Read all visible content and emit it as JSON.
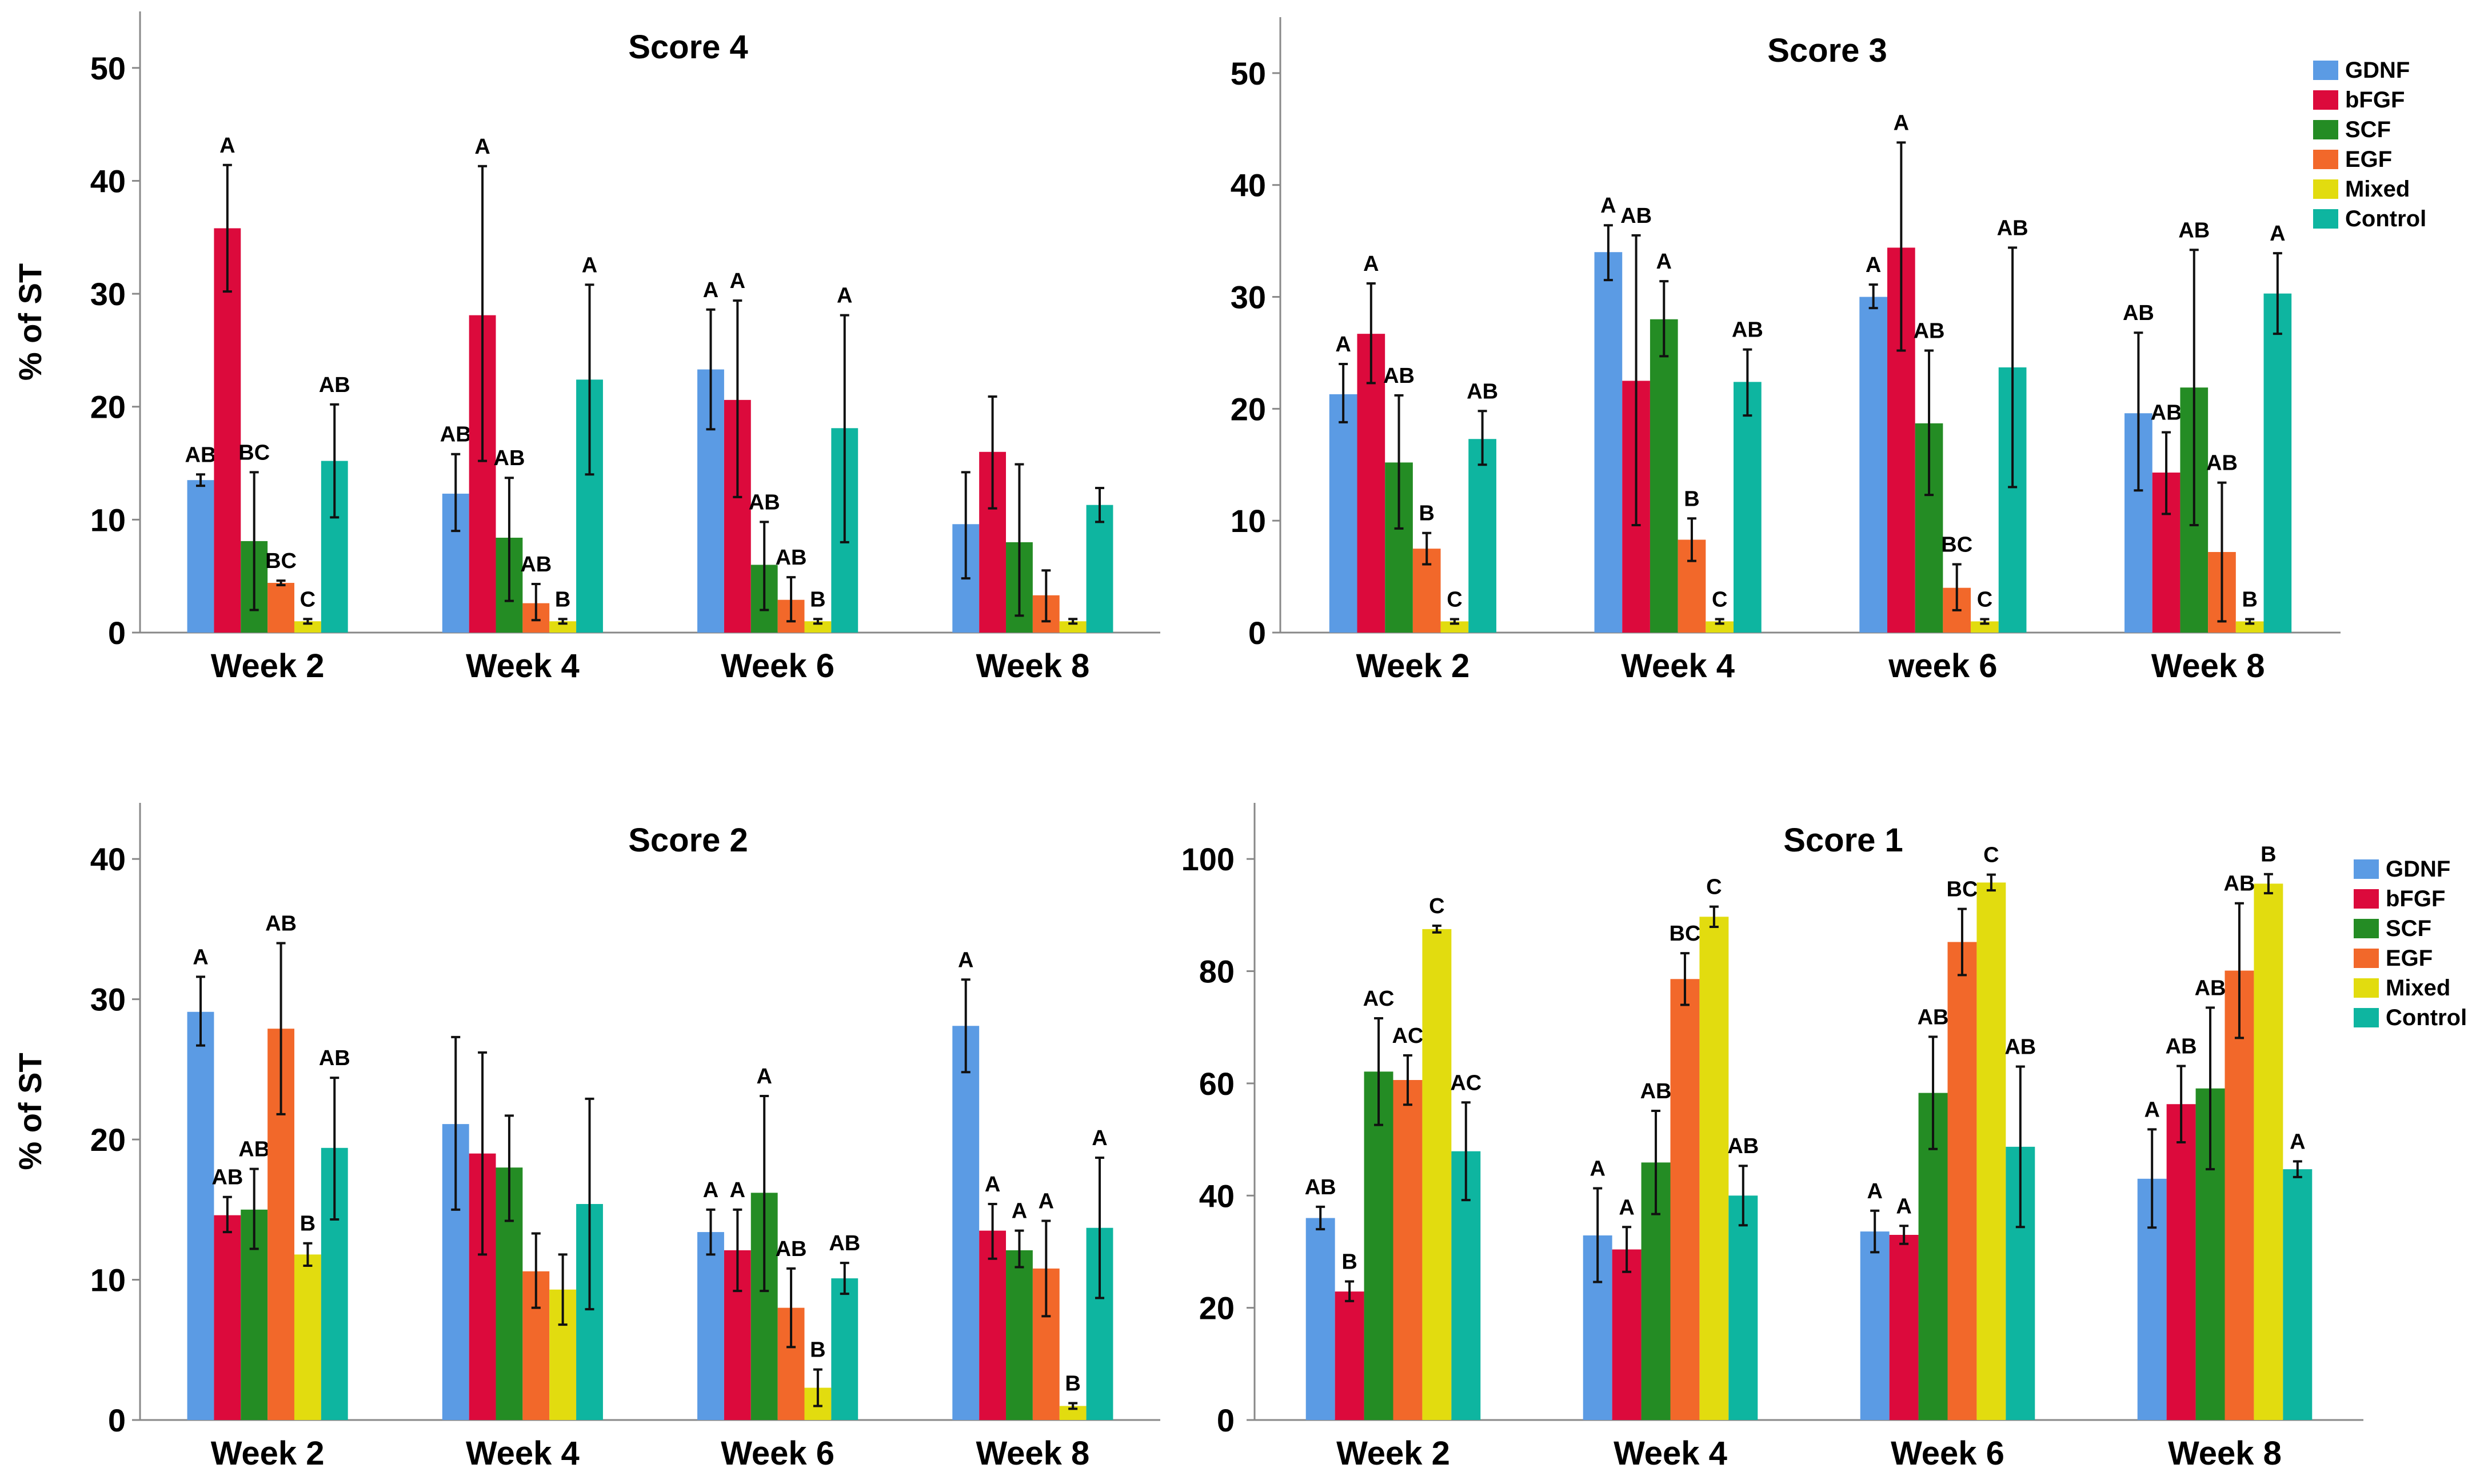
{
  "chart_data": [
    {
      "type": "bar",
      "title": "Score 4",
      "ylabel": "% of ST",
      "xlabel": "",
      "ylim": [
        0,
        55
      ],
      "yticks": [
        0,
        10,
        20,
        30,
        40,
        50
      ],
      "categories": [
        "Week 2",
        "Week 4",
        "Week 6",
        "Week 8"
      ],
      "legend": null,
      "series": [
        {
          "name": "GDNF",
          "values": [
            13.5,
            12.3,
            23.3,
            9.6
          ],
          "err_low": [
            13.0,
            9.0,
            18.0,
            4.8
          ],
          "err_high": [
            14.0,
            15.8,
            28.6,
            14.2
          ],
          "letters": [
            "AB",
            "AB",
            "A",
            ""
          ]
        },
        {
          "name": "bFGF",
          "values": [
            35.8,
            28.1,
            20.6,
            16.0
          ],
          "err_low": [
            30.2,
            15.2,
            12.0,
            11.0
          ],
          "err_high": [
            41.4,
            41.3,
            29.4,
            20.9
          ],
          "letters": [
            "A",
            "A",
            "A",
            ""
          ]
        },
        {
          "name": "SCF",
          "values": [
            8.1,
            8.4,
            6.0,
            8.0
          ],
          "err_low": [
            2.0,
            2.8,
            2.0,
            1.5
          ],
          "err_high": [
            14.2,
            13.7,
            9.8,
            14.9
          ],
          "letters": [
            "BC",
            "AB",
            "AB",
            ""
          ]
        },
        {
          "name": "EGF",
          "values": [
            4.4,
            2.6,
            2.9,
            3.3
          ],
          "err_low": [
            4.2,
            1.1,
            1.0,
            1.0
          ],
          "err_high": [
            4.6,
            4.3,
            4.9,
            5.5
          ],
          "letters": [
            "BC",
            "AB",
            "AB",
            ""
          ]
        },
        {
          "name": "Mixed",
          "values": [
            1.0,
            1.0,
            1.0,
            1.0
          ],
          "err_low": [
            0.8,
            0.8,
            0.8,
            0.8
          ],
          "err_high": [
            1.2,
            1.2,
            1.2,
            1.2
          ],
          "letters": [
            "C",
            "B",
            "B",
            ""
          ]
        },
        {
          "name": "Control",
          "values": [
            15.2,
            22.4,
            18.1,
            11.3
          ],
          "err_low": [
            10.2,
            14.0,
            8.0,
            9.8
          ],
          "err_high": [
            20.2,
            30.8,
            28.1,
            12.8
          ],
          "letters": [
            "AB",
            "A",
            "A",
            ""
          ]
        }
      ]
    },
    {
      "type": "bar",
      "title": "Score 3",
      "ylabel": "",
      "xlabel": "",
      "ylim": [
        0,
        55
      ],
      "yticks": [
        0,
        10,
        20,
        30,
        40,
        50
      ],
      "categories": [
        "Week 2",
        "Week 4",
        "week 6",
        "Week 8"
      ],
      "legend": "top-right",
      "series": [
        {
          "name": "GDNF",
          "values": [
            21.3,
            34.0,
            30.0,
            19.6
          ],
          "err_low": [
            18.8,
            31.5,
            29.0,
            12.7
          ],
          "err_high": [
            24.0,
            36.4,
            31.1,
            26.8
          ],
          "letters": [
            "A",
            "A",
            "A",
            "AB"
          ]
        },
        {
          "name": "bFGF",
          "values": [
            26.7,
            22.5,
            34.4,
            14.3
          ],
          "err_low": [
            22.3,
            9.6,
            25.2,
            10.6
          ],
          "err_high": [
            31.2,
            35.5,
            43.8,
            17.9
          ],
          "letters": [
            "A",
            "AB",
            "A",
            "AB"
          ]
        },
        {
          "name": "SCF",
          "values": [
            15.2,
            28.0,
            18.7,
            21.9
          ],
          "err_low": [
            9.3,
            24.7,
            12.3,
            9.6
          ],
          "err_high": [
            21.2,
            31.4,
            25.2,
            34.2
          ],
          "letters": [
            "AB",
            "A",
            "AB",
            "AB"
          ]
        },
        {
          "name": "EGF",
          "values": [
            7.5,
            8.3,
            4.0,
            7.2
          ],
          "err_low": [
            6.1,
            6.4,
            2.0,
            1.0
          ],
          "err_high": [
            8.9,
            10.2,
            6.1,
            13.4
          ],
          "letters": [
            "B",
            "B",
            "BC",
            "AB"
          ]
        },
        {
          "name": "Mixed",
          "values": [
            1.0,
            1.0,
            1.0,
            1.0
          ],
          "err_low": [
            0.8,
            0.8,
            0.8,
            0.8
          ],
          "err_high": [
            1.2,
            1.2,
            1.2,
            1.2
          ],
          "letters": [
            "C",
            "C",
            "C",
            "B"
          ]
        },
        {
          "name": "Control",
          "values": [
            17.3,
            22.4,
            23.7,
            30.3
          ],
          "err_low": [
            15.0,
            19.4,
            13.0,
            26.7
          ],
          "err_high": [
            19.8,
            25.3,
            34.4,
            33.9
          ],
          "letters": [
            "AB",
            "AB",
            "AB",
            "A"
          ]
        }
      ]
    },
    {
      "type": "bar",
      "title": "Score 2",
      "ylabel": "% of ST",
      "xlabel": "",
      "ylim": [
        0,
        44
      ],
      "yticks": [
        0,
        10,
        20,
        30,
        40
      ],
      "categories": [
        "Week 2",
        "Week 4",
        "Week 6",
        "Week 8"
      ],
      "legend": null,
      "series": [
        {
          "name": "GDNF",
          "values": [
            29.1,
            21.1,
            13.4,
            28.1
          ],
          "err_low": [
            26.7,
            15.0,
            11.8,
            24.8
          ],
          "err_high": [
            31.6,
            27.3,
            15.0,
            31.4
          ],
          "letters": [
            "A",
            "",
            "A",
            "A"
          ]
        },
        {
          "name": "bFGF",
          "values": [
            14.6,
            19.0,
            12.1,
            13.5
          ],
          "err_low": [
            13.4,
            11.8,
            9.2,
            11.5
          ],
          "err_high": [
            15.9,
            26.2,
            15.0,
            15.4
          ],
          "letters": [
            "AB",
            "",
            "A",
            "A"
          ]
        },
        {
          "name": "SCF",
          "values": [
            15.0,
            18.0,
            16.2,
            12.1
          ],
          "err_low": [
            12.2,
            14.2,
            9.2,
            10.9
          ],
          "err_high": [
            17.9,
            21.7,
            23.1,
            13.5
          ],
          "letters": [
            "AB",
            "",
            "A",
            "A"
          ]
        },
        {
          "name": "EGF",
          "values": [
            27.9,
            10.6,
            8.0,
            10.8
          ],
          "err_low": [
            21.8,
            8.0,
            5.2,
            7.4
          ],
          "err_high": [
            34.0,
            13.3,
            10.8,
            14.2
          ],
          "letters": [
            "AB",
            "",
            "AB",
            "A"
          ]
        },
        {
          "name": "Mixed",
          "values": [
            11.8,
            9.3,
            2.3,
            1.0
          ],
          "err_low": [
            11.0,
            6.8,
            1.0,
            0.8
          ],
          "err_high": [
            12.6,
            11.8,
            3.6,
            1.2
          ],
          "letters": [
            "B",
            "",
            "B",
            "B"
          ]
        },
        {
          "name": "Control",
          "values": [
            19.4,
            15.4,
            10.1,
            13.7
          ],
          "err_low": [
            14.3,
            7.9,
            9.0,
            8.7
          ],
          "err_high": [
            24.4,
            22.9,
            11.2,
            18.7
          ],
          "letters": [
            "AB",
            "",
            "AB",
            "A"
          ]
        }
      ]
    },
    {
      "type": "bar",
      "title": "Score 1",
      "ylabel": "",
      "xlabel": "",
      "ylim": [
        0,
        110
      ],
      "yticks": [
        0,
        20,
        40,
        60,
        80,
        100
      ],
      "categories": [
        "Week 2",
        "Week 4",
        "Week 6",
        "Week 8"
      ],
      "legend": "top-right",
      "series": [
        {
          "name": "GDNF",
          "values": [
            36.0,
            32.9,
            33.6,
            43.0
          ],
          "err_low": [
            34.0,
            24.6,
            29.9,
            34.3
          ],
          "err_high": [
            38.0,
            41.3,
            37.3,
            51.8
          ],
          "letters": [
            "AB",
            "A",
            "A",
            "A"
          ]
        },
        {
          "name": "bFGF",
          "values": [
            22.9,
            30.4,
            33.0,
            56.3
          ],
          "err_low": [
            21.2,
            26.4,
            31.4,
            49.5
          ],
          "err_high": [
            24.7,
            34.4,
            34.6,
            63.1
          ],
          "letters": [
            "B",
            "A",
            "A",
            "AB"
          ]
        },
        {
          "name": "SCF",
          "values": [
            62.1,
            45.9,
            58.3,
            59.1
          ],
          "err_low": [
            52.6,
            36.7,
            48.3,
            44.7
          ],
          "err_high": [
            71.6,
            55.1,
            68.3,
            73.5
          ],
          "letters": [
            "AC",
            "AB",
            "AB",
            "AB"
          ]
        },
        {
          "name": "EGF",
          "values": [
            60.6,
            78.6,
            85.2,
            80.1
          ],
          "err_low": [
            56.2,
            74.0,
            79.3,
            68.1
          ],
          "err_high": [
            65.0,
            83.2,
            91.1,
            92.1
          ],
          "letters": [
            "AC",
            "BC",
            "BC",
            "AB"
          ]
        },
        {
          "name": "Mixed",
          "values": [
            87.5,
            89.7,
            95.8,
            95.6
          ],
          "err_low": [
            86.9,
            87.9,
            94.4,
            93.9
          ],
          "err_high": [
            88.1,
            91.5,
            97.2,
            97.3
          ],
          "letters": [
            "C",
            "C",
            "C",
            "B"
          ]
        },
        {
          "name": "Control",
          "values": [
            47.9,
            40.0,
            48.7,
            44.7
          ],
          "err_low": [
            39.2,
            34.7,
            34.4,
            43.3
          ],
          "err_high": [
            56.6,
            45.3,
            63.0,
            46.1
          ],
          "letters": [
            "AC",
            "AB",
            "AB",
            "A"
          ]
        }
      ]
    }
  ],
  "colors": {
    "GDNF": "#5b9be4",
    "bFGF": "#dc0a3c",
    "SCF": "#248c24",
    "EGF": "#f2682a",
    "Mixed": "#e2dc0f",
    "Control": "#0eb5a0"
  }
}
